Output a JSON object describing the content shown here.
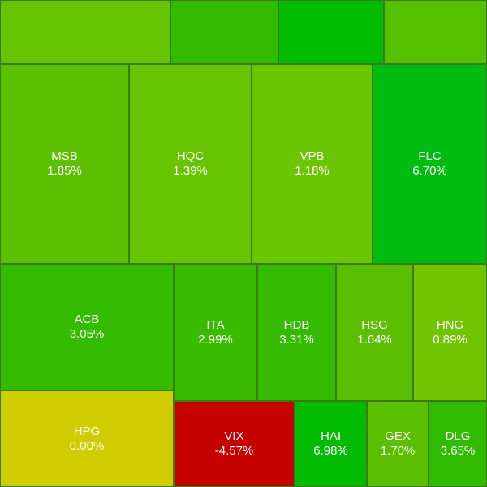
{
  "tiles": [
    {
      "id": "t1",
      "symbol": "",
      "change": "",
      "color": "#66c400"
    },
    {
      "id": "t2",
      "symbol": "",
      "change": "",
      "color": "#33bb00"
    },
    {
      "id": "t3",
      "symbol": "",
      "change": "",
      "color": "#00bb00"
    },
    {
      "id": "t4",
      "symbol": "",
      "change": "",
      "color": "#55c000"
    },
    {
      "id": "msb",
      "symbol": "MSB",
      "change": "1.85%",
      "color": "#5cc000"
    },
    {
      "id": "hqc",
      "symbol": "HQC",
      "change": "1.39%",
      "color": "#66c400"
    },
    {
      "id": "vpb",
      "symbol": "VPB",
      "change": "1.18%",
      "color": "#6ac600"
    },
    {
      "id": "flc",
      "symbol": "FLC",
      "change": "6.70%",
      "color": "#00bb10"
    },
    {
      "id": "acb",
      "symbol": "ACB",
      "change": "3.05%",
      "color": "#33bb00"
    },
    {
      "id": "ita",
      "symbol": "ITA",
      "change": "2.99%",
      "color": "#39bb00"
    },
    {
      "id": "hdb",
      "symbol": "HDB",
      "change": "3.31%",
      "color": "#33bb00"
    },
    {
      "id": "hsg",
      "symbol": "HSG",
      "change": "1.64%",
      "color": "#5cbe00"
    },
    {
      "id": "hng",
      "symbol": "HNG",
      "change": "0.89%",
      "color": "#70c400"
    },
    {
      "id": "hpg",
      "symbol": "HPG",
      "change": "0.00%",
      "color": "#cfcc00"
    },
    {
      "id": "vix",
      "symbol": "VIX",
      "change": "-4.57%",
      "color": "#c40000"
    },
    {
      "id": "hai",
      "symbol": "HAI",
      "change": "6.98%",
      "color": "#00bb00"
    },
    {
      "id": "gex",
      "symbol": "GEX",
      "change": "1.70%",
      "color": "#5cbe00"
    },
    {
      "id": "dlg",
      "symbol": "DLG",
      "change": "3.65%",
      "color": "#30bb00"
    }
  ]
}
